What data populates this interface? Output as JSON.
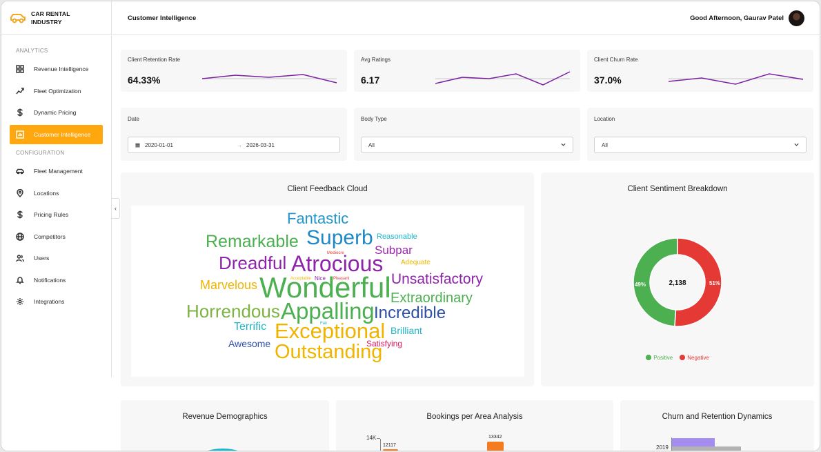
{
  "brand": {
    "name": "CAR RENTAL\nINDUSTRY"
  },
  "sidebar": {
    "analytics_label": "ANALYTICS",
    "config_label": "CONFIGURATION",
    "analytics_items": [
      {
        "label": "Revenue Intelligence",
        "icon": "grid-icon"
      },
      {
        "label": "Fleet Optimization",
        "icon": "trend-icon"
      },
      {
        "label": "Dynamic Pricing",
        "icon": "dollar-icon"
      },
      {
        "label": "Customer Intelligence",
        "icon": "chart-icon",
        "active": true
      }
    ],
    "config_items": [
      {
        "label": "Fleet Management",
        "icon": "car-icon"
      },
      {
        "label": "Locations",
        "icon": "pin-icon"
      },
      {
        "label": "Pricing Rules",
        "icon": "dollar-icon"
      },
      {
        "label": "Competitors",
        "icon": "globe-icon"
      },
      {
        "label": "Users",
        "icon": "users-icon"
      },
      {
        "label": "Notifications",
        "icon": "bell-icon"
      },
      {
        "label": "Integrations",
        "icon": "gear-icon"
      }
    ]
  },
  "header": {
    "title": "Customer Intelligence",
    "greeting": "Good Afternoon, Gaurav Patel"
  },
  "kpis": [
    {
      "label": "Client Retention Rate",
      "value": "64.33%"
    },
    {
      "label": "Avg Ratings",
      "value": "6.17"
    },
    {
      "label": "Client Churn Rate",
      "value": "37.0%"
    }
  ],
  "filters": {
    "date_label": "Date",
    "date_from": "2020-01-01",
    "date_to": "2026-03-31",
    "body_type_label": "Body Type",
    "body_type_value": "All",
    "location_label": "Location",
    "location_value": "All"
  },
  "cloud": {
    "title": "Client Feedback Cloud",
    "words": [
      "Fantastic",
      "Superb",
      "Remarkable",
      "Reasonable",
      "Subpar",
      "Mediocre",
      "Dreadful",
      "Atrocious",
      "Adequate",
      "Marvelous",
      "Acceptable",
      "Nice",
      "Pleasant",
      "Wonderful",
      "Unsatisfactory",
      "Extraordinary",
      "Horrendous",
      "Appalling",
      "Incredible",
      "Terrific",
      "Fair",
      "Brilliant",
      "Exceptional",
      "Awesome",
      "Satisfying",
      "Outstanding"
    ]
  },
  "sentiment": {
    "title": "Client Sentiment Breakdown",
    "total": "2,138",
    "positive_pct_label": "49%",
    "negative_pct_label": "51%",
    "legend_positive": "Positive",
    "legend_negative": "Negative",
    "colors": {
      "positive": "#4caf50",
      "negative": "#e53935"
    }
  },
  "bottom": {
    "revenue_title": "Revenue Demographics",
    "bookings_title": "Bookings per Area Analysis",
    "churn_title": "Churn and Retention Dynamics",
    "bookings_tick": "14K",
    "bookings_val1": "12117",
    "bookings_val2": "13342",
    "churn_tick": "2019"
  },
  "chart_data": [
    {
      "type": "pie",
      "title": "Client Sentiment Breakdown",
      "categories": [
        "Positive",
        "Negative"
      ],
      "values": [
        49,
        51
      ],
      "center_label": "2,138"
    },
    {
      "type": "bar",
      "title": "Bookings per Area Analysis",
      "values": [
        12117,
        13342
      ],
      "ytick": "14K"
    }
  ]
}
